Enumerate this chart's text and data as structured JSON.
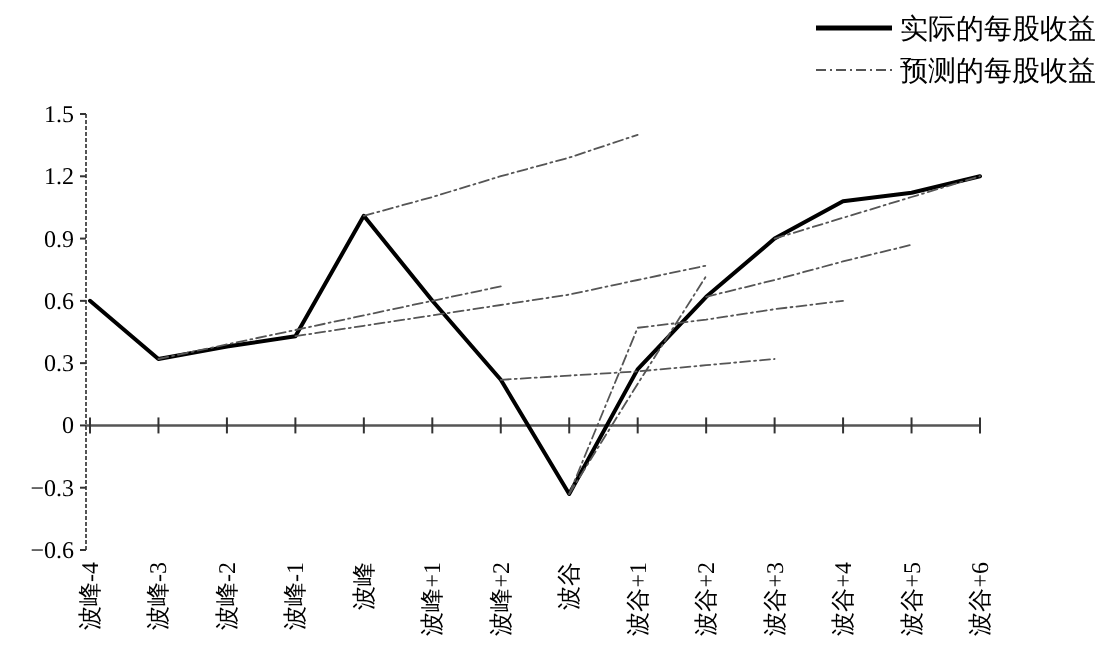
{
  "chart_data": {
    "type": "line",
    "categories": [
      "波峰-4",
      "波峰-3",
      "波峰-2",
      "波峰-1",
      "波峰",
      "波峰+1",
      "波峰+2",
      "波谷",
      "波谷+1",
      "波谷+2",
      "波谷+3",
      "波谷+4",
      "波谷+5",
      "波谷+6"
    ],
    "ylim": [
      -0.6,
      1.5
    ],
    "yticks": [
      -0.6,
      -0.3,
      0,
      0.3,
      0.6,
      0.9,
      1.2,
      1.5
    ],
    "legend": "top right",
    "marker": "none",
    "series": [
      {
        "name": "实际的每股收益",
        "color": "#000000",
        "line_style": "solid",
        "values": [
          0.6,
          0.32,
          0.38,
          0.43,
          1.01,
          0.6,
          0.22,
          -0.33,
          0.27,
          0.62,
          0.9,
          1.08,
          1.12,
          1.2
        ]
      },
      {
        "name": "预测的每股收益",
        "color": "#555555",
        "line_style": "dashed",
        "values": [
          null,
          null,
          null,
          null,
          1.01,
          1.1,
          1.2,
          1.29,
          1.4,
          null,
          null,
          null,
          null,
          null
        ]
      },
      {
        "color": "#555555",
        "line_style": "dashed",
        "values": [
          null,
          0.32,
          0.39,
          0.46,
          0.53,
          0.6,
          0.67,
          null,
          null,
          null,
          null,
          null,
          null,
          null
        ]
      },
      {
        "color": "#555555",
        "line_style": "dashed",
        "values": [
          null,
          null,
          null,
          0.43,
          0.48,
          0.53,
          0.58,
          0.63,
          0.7,
          0.77,
          null,
          null,
          null,
          null
        ]
      },
      {
        "color": "#555555",
        "line_style": "dashed",
        "values": [
          null,
          null,
          null,
          null,
          null,
          null,
          0.22,
          0.24,
          0.26,
          0.29,
          0.32,
          null,
          null,
          null
        ]
      },
      {
        "color": "#555555",
        "line_style": "dashed",
        "values": [
          null,
          null,
          null,
          null,
          null,
          null,
          null,
          -0.33,
          0.47,
          0.51,
          0.56,
          0.6,
          null,
          null
        ]
      },
      {
        "color": "#555555",
        "line_style": "dashed",
        "values": [
          null,
          null,
          null,
          null,
          null,
          null,
          null,
          -0.33,
          0.2,
          0.72,
          null,
          null,
          null,
          null
        ]
      },
      {
        "color": "#555555",
        "line_style": "dashed",
        "values": [
          null,
          null,
          null,
          null,
          null,
          null,
          null,
          null,
          null,
          0.62,
          0.7,
          0.79,
          0.87,
          null
        ]
      },
      {
        "color": "#555555",
        "line_style": "dashed",
        "values": [
          null,
          null,
          null,
          null,
          null,
          null,
          null,
          null,
          null,
          null,
          0.9,
          1.0,
          1.1,
          1.2
        ]
      }
    ]
  }
}
